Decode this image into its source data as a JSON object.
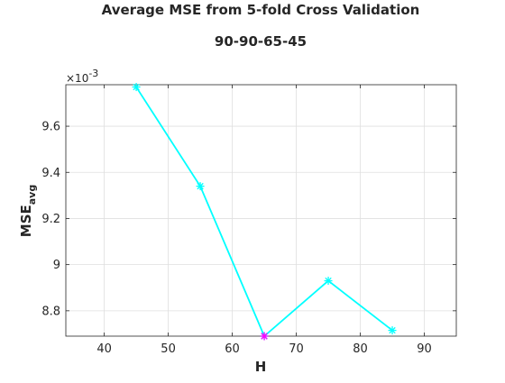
{
  "chart_data": {
    "type": "line",
    "title": "Average MSE from 5-fold Cross Validation",
    "subtitle": "90-90-65-45",
    "xlabel": "H",
    "ylabel": {
      "main": "MSE",
      "sub": "avg"
    },
    "y_exponent": {
      "base": "×10",
      "power": "-3"
    },
    "xlim": [
      34,
      95
    ],
    "ylim": [
      8.69,
      9.78
    ],
    "x_ticks": [
      40,
      50,
      60,
      70,
      80,
      90
    ],
    "y_ticks": [
      8.8,
      9.0,
      9.2,
      9.4,
      9.6
    ],
    "y_tick_labels": [
      "8.8",
      "9",
      "9.2",
      "9.4",
      "9.6"
    ],
    "grid": true,
    "series": [
      {
        "color": "#00ffff",
        "marker": "asterisk",
        "x": [
          45,
          55,
          65,
          75,
          85
        ],
        "y": [
          9.77,
          9.34,
          8.69,
          8.93,
          8.715
        ]
      }
    ],
    "highlight": {
      "x": 65,
      "y": 8.69,
      "color": "#ff00ff",
      "marker": "asterisk"
    }
  }
}
